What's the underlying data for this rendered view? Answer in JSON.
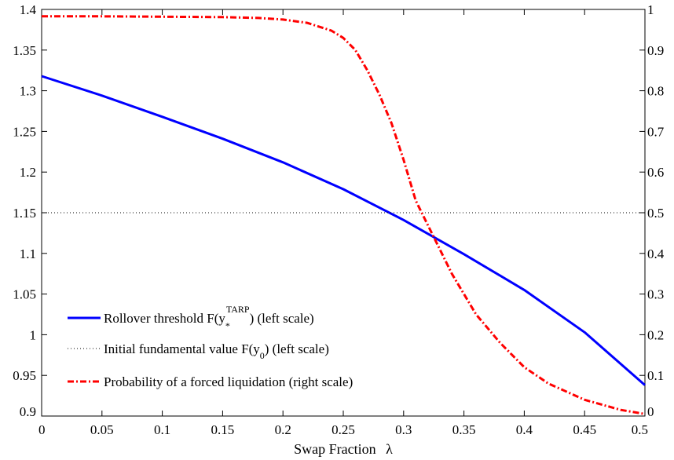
{
  "chart_data": {
    "type": "line",
    "title": "",
    "xlabel": "Swap Fraction",
    "xlabel_symbol": "λ",
    "xlim": [
      0,
      0.5
    ],
    "ylim_left": [
      0.9,
      1.4
    ],
    "ylim_right": [
      0,
      1
    ],
    "grid": false,
    "legend_position": "bottom-left",
    "x_ticks": [
      "0",
      "0.05",
      "0.1",
      "0.15",
      "0.2",
      "0.25",
      "0.3",
      "0.35",
      "0.4",
      "0.45",
      "0.5"
    ],
    "y_ticks_left": [
      "0.9",
      "0.95",
      "1",
      "1.05",
      "1.1",
      "1.15",
      "1.2",
      "1.25",
      "1.3",
      "1.35",
      "1.4"
    ],
    "y_ticks_right": [
      "0",
      "0.1",
      "0.2",
      "0.3",
      "0.4",
      "0.5",
      "0.6",
      "0.7",
      "0.8",
      "0.9",
      "1"
    ],
    "legend": {
      "rollover_a": "Rollover threshold F(y",
      "rollover_sub": "*",
      "rollover_sup": "TARP",
      "rollover_b": ") (left scale)",
      "initial_a": "Initial fundamental value F(y",
      "initial_sub": "0",
      "initial_b": ") (left scale)",
      "probability": "Probability of a forced liquidation (right scale)"
    },
    "series": [
      {
        "axis": "left",
        "color": "#0000ff",
        "style": "solid",
        "x": [
          0,
          0.05,
          0.1,
          0.15,
          0.2,
          0.25,
          0.3,
          0.35,
          0.4,
          0.45,
          0.5
        ],
        "y": [
          1.318,
          1.294,
          1.268,
          1.241,
          1.212,
          1.179,
          1.141,
          1.099,
          1.055,
          1.003,
          0.938
        ]
      },
      {
        "axis": "left",
        "color": "#000000",
        "style": "dotted",
        "x": [
          0,
          0.5
        ],
        "y": [
          1.15,
          1.15
        ]
      },
      {
        "axis": "right",
        "color": "#ff0000",
        "style": "dashdot",
        "x": [
          0,
          0.05,
          0.1,
          0.15,
          0.18,
          0.2,
          0.22,
          0.24,
          0.25,
          0.26,
          0.27,
          0.28,
          0.29,
          0.3,
          0.31,
          0.32,
          0.33,
          0.34,
          0.35,
          0.36,
          0.38,
          0.4,
          0.42,
          0.45,
          0.48,
          0.5
        ],
        "y": [
          0.983,
          0.983,
          0.982,
          0.981,
          0.979,
          0.975,
          0.967,
          0.948,
          0.93,
          0.9,
          0.85,
          0.79,
          0.72,
          0.63,
          0.53,
          0.47,
          0.41,
          0.35,
          0.3,
          0.25,
          0.18,
          0.12,
          0.08,
          0.04,
          0.015,
          0.005
        ]
      }
    ]
  }
}
